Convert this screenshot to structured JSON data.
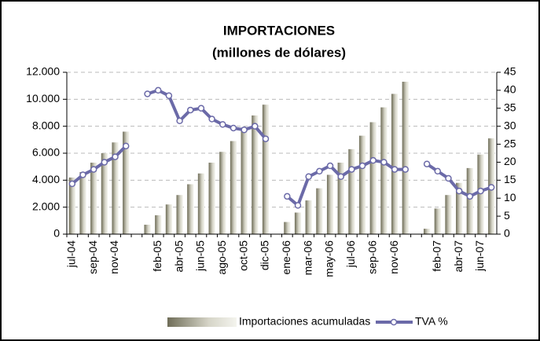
{
  "chart_data": {
    "type": "bar-line",
    "title": "IMPORTACIONES",
    "subtitle": "(millones de dólares)",
    "categories": [
      "jul-04",
      null,
      "sep-04",
      null,
      "nov-04",
      null,
      null,
      null,
      "feb-05",
      null,
      "abr-05",
      null,
      "jun-05",
      null,
      "ago-05",
      null,
      "oct-05",
      null,
      "dic-05",
      null,
      "ene-06",
      null,
      "mar-06",
      null,
      "may-06",
      null,
      "jul-06",
      null,
      "sep-06",
      null,
      "nov-06",
      null,
      null,
      null,
      "feb-07",
      null,
      "abr-07",
      null,
      "jun-07",
      null
    ],
    "series": [
      {
        "name": "Importaciones acumuladas",
        "color": "#8c8a74",
        "type": "bar",
        "values": [
          4200,
          4600,
          5300,
          6000,
          6800,
          7600,
          null,
          700,
          1400,
          2200,
          2900,
          3700,
          4500,
          5300,
          6100,
          6900,
          7900,
          8800,
          9600,
          null,
          900,
          1600,
          2500,
          3400,
          4400,
          5300,
          6300,
          7300,
          8300,
          9400,
          10400,
          11300,
          null,
          400,
          1900,
          2900,
          3800,
          4900,
          5900,
          7100
        ]
      },
      {
        "name": "TVA %",
        "color": "#6b6aa8",
        "type": "line",
        "axis": "y2",
        "values": [
          14,
          16.5,
          18,
          20,
          21.5,
          24.5,
          null,
          39,
          40,
          38.5,
          31.5,
          34.5,
          35,
          32,
          30.5,
          29.5,
          29,
          30,
          26.5,
          null,
          10.5,
          8,
          16,
          17.5,
          19,
          16,
          18,
          19,
          20.5,
          20,
          18,
          18,
          null,
          19.5,
          17.5,
          15.5,
          12,
          10.5,
          12,
          13
        ]
      }
    ],
    "ylim": [
      0,
      12000
    ],
    "yticks": [
      0,
      {
        "value": 2000,
        "label": "2.000"
      },
      {
        "value": 4000,
        "label": "4.000"
      },
      {
        "value": 6000,
        "label": "6.000"
      },
      {
        "value": 8000,
        "label": "8.000"
      },
      {
        "value": 10000,
        "label": "10.000"
      },
      {
        "value": 12000,
        "label": "12.000"
      }
    ],
    "y2lim": [
      0,
      45
    ],
    "y2ticks": [
      0,
      5,
      10,
      15,
      20,
      25,
      30,
      35,
      40,
      45
    ],
    "grid": true,
    "legend": "bottom"
  }
}
